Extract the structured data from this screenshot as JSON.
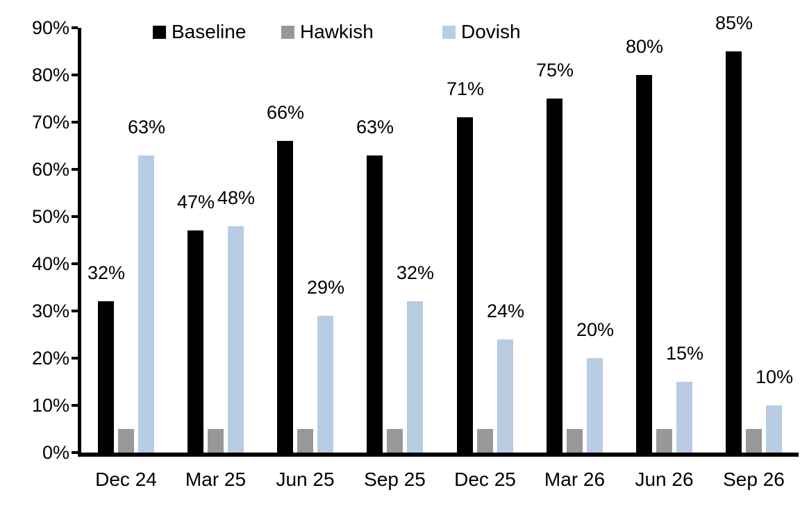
{
  "chart_data": {
    "type": "bar",
    "title": "",
    "categories": [
      "Dec 24",
      "Mar 25",
      "Jun 25",
      "Sep 25",
      "Dec 25",
      "Mar 26",
      "Jun 26",
      "Sep 26"
    ],
    "series": [
      {
        "name": "Baseline",
        "color": "#000000",
        "values": [
          32,
          47,
          66,
          63,
          71,
          75,
          80,
          85
        ],
        "data_labels": [
          "32%",
          "47%",
          "66%",
          "63%",
          "71%",
          "75%",
          "80%",
          "85%"
        ]
      },
      {
        "name": "Hawkish",
        "color": "#989898",
        "values": [
          5,
          5,
          5,
          5,
          5,
          5,
          5,
          5
        ],
        "data_labels": [
          "",
          "",
          "",
          "",
          "",
          "",
          "",
          ""
        ]
      },
      {
        "name": "Dovish",
        "color": "#B8CCE4",
        "values": [
          63,
          48,
          29,
          32,
          24,
          20,
          15,
          10
        ],
        "data_labels": [
          "63%",
          "48%",
          "29%",
          "32%",
          "24%",
          "20%",
          "15%",
          "10%"
        ]
      }
    ],
    "xlabel": "",
    "ylabel": "",
    "ylim": [
      0,
      90
    ],
    "ytick_labels": [
      "0%",
      "10%",
      "20%",
      "30%",
      "40%",
      "50%",
      "60%",
      "70%",
      "80%",
      "90%"
    ],
    "legend_position": "top",
    "grid": false,
    "axis_color": "#000000",
    "background_color": "#FFFFFF"
  }
}
